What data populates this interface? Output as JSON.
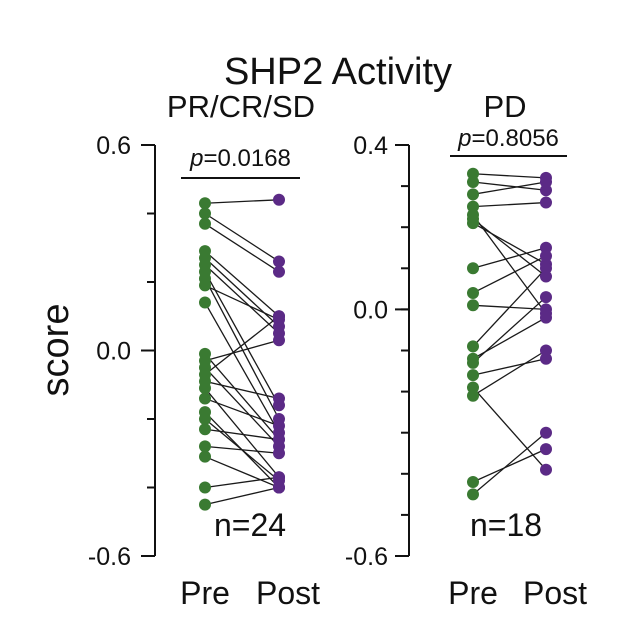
{
  "figure": {
    "title": "SHP2 Activity",
    "ylabel": "score"
  },
  "chart_data": [
    {
      "type": "paired-dot",
      "title": "PR/CR/SD",
      "ylabel": "score",
      "ylim": [
        -0.6,
        0.6
      ],
      "yticks": [
        -0.6,
        0.0,
        0.6
      ],
      "yticklabels": [
        "-0.6",
        "0.0",
        "0.6"
      ],
      "categories": [
        "Pre",
        "Post"
      ],
      "p_label": "p",
      "p_text": "=0.0168",
      "n_label": "n=24",
      "colors": {
        "pre": "#3a7a32",
        "post": "#5b2a86",
        "line": "#1a1a1a"
      },
      "pairs": [
        [
          0.43,
          0.44
        ],
        [
          0.4,
          0.26
        ],
        [
          0.37,
          0.23
        ],
        [
          0.29,
          0.1
        ],
        [
          0.27,
          0.07
        ],
        [
          0.25,
          0.05
        ],
        [
          0.23,
          -0.16
        ],
        [
          0.21,
          -0.2
        ],
        [
          0.19,
          0.09
        ],
        [
          0.14,
          -0.24
        ],
        [
          -0.01,
          -0.26
        ],
        [
          -0.03,
          0.03
        ],
        [
          -0.05,
          -0.28
        ],
        [
          -0.07,
          0.1
        ],
        [
          -0.09,
          -0.14
        ],
        [
          -0.11,
          -0.37
        ],
        [
          -0.14,
          -0.22
        ],
        [
          -0.18,
          -0.4
        ],
        [
          -0.2,
          -0.38
        ],
        [
          -0.23,
          -0.26
        ],
        [
          -0.28,
          -0.3
        ],
        [
          -0.31,
          -0.4
        ],
        [
          -0.4,
          -0.37
        ],
        [
          -0.45,
          -0.4
        ]
      ]
    },
    {
      "type": "paired-dot",
      "title": "PD",
      "ylabel": "",
      "ylim": [
        -0.6,
        0.4
      ],
      "yticks": [
        -0.6,
        0.0,
        0.4
      ],
      "yticklabels": [
        "-0.6",
        "0.0",
        "0.4"
      ],
      "categories": [
        "Pre",
        "Post"
      ],
      "p_label": "p",
      "p_text": "=0.8056",
      "n_label": "n=18",
      "colors": {
        "pre": "#3a7a32",
        "post": "#5b2a86",
        "line": "#1a1a1a"
      },
      "pairs": [
        [
          0.33,
          0.32
        ],
        [
          0.31,
          0.29
        ],
        [
          0.28,
          0.31
        ],
        [
          0.25,
          0.26
        ],
        [
          0.23,
          -0.01
        ],
        [
          0.22,
          0.08
        ],
        [
          0.21,
          0.11
        ],
        [
          0.1,
          0.15
        ],
        [
          0.04,
          0.13
        ],
        [
          0.01,
          0.0
        ],
        [
          -0.09,
          0.1
        ],
        [
          -0.12,
          -0.02
        ],
        [
          -0.13,
          0.03
        ],
        [
          -0.16,
          -0.12
        ],
        [
          -0.19,
          -0.39
        ],
        [
          -0.21,
          -0.1
        ],
        [
          -0.42,
          -0.34
        ],
        [
          -0.45,
          -0.3
        ]
      ]
    }
  ]
}
